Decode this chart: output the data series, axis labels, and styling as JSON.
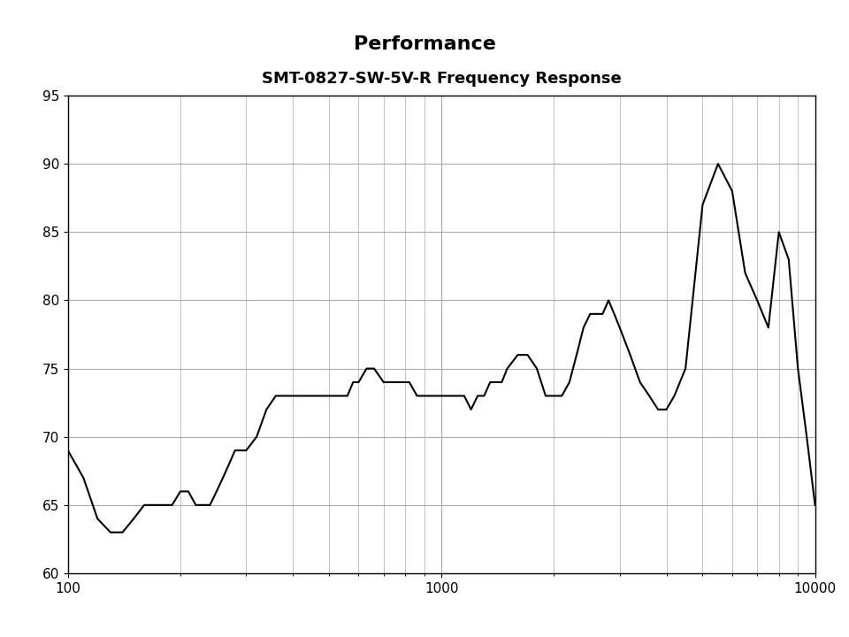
{
  "title": "Performance",
  "chart_title": "SMT-0827-SW-5V-R Frequency Response",
  "xlim": [
    100,
    10000
  ],
  "ylim": [
    60,
    95
  ],
  "yticks": [
    60,
    65,
    70,
    75,
    80,
    85,
    90,
    95
  ],
  "xticks": [
    100,
    1000,
    10000
  ],
  "background_color": "#ffffff",
  "line_color": "#000000",
  "grid_color": "#aaaaaa",
  "freq_data": [
    100,
    110,
    120,
    130,
    140,
    150,
    160,
    170,
    180,
    190,
    200,
    210,
    220,
    230,
    240,
    250,
    260,
    270,
    280,
    290,
    300,
    320,
    340,
    360,
    380,
    400,
    420,
    440,
    460,
    480,
    500,
    520,
    540,
    560,
    580,
    600,
    630,
    660,
    700,
    740,
    780,
    820,
    860,
    900,
    950,
    1000,
    1050,
    1100,
    1150,
    1200,
    1250,
    1300,
    1350,
    1400,
    1450,
    1500,
    1600,
    1700,
    1800,
    1900,
    2000,
    2100,
    2200,
    2300,
    2400,
    2500,
    2600,
    2700,
    2800,
    2900,
    3000,
    3200,
    3400,
    3600,
    3800,
    4000,
    4200,
    4500,
    5000,
    5500,
    6000,
    6500,
    7000,
    7500,
    8000,
    8500,
    9000,
    9500,
    10000
  ],
  "spl_data": [
    69,
    67,
    64,
    63,
    63,
    64,
    65,
    65,
    65,
    65,
    66,
    66,
    65,
    65,
    65,
    66,
    67,
    68,
    69,
    69,
    69,
    70,
    72,
    73,
    73,
    73,
    73,
    73,
    73,
    73,
    73,
    73,
    73,
    73,
    74,
    74,
    75,
    75,
    74,
    74,
    74,
    74,
    73,
    73,
    73,
    73,
    73,
    73,
    73,
    72,
    73,
    73,
    74,
    74,
    74,
    75,
    76,
    76,
    75,
    73,
    73,
    73,
    74,
    76,
    78,
    79,
    79,
    79,
    80,
    79,
    78,
    76,
    74,
    73,
    72,
    72,
    73,
    75,
    87,
    90,
    88,
    82,
    80,
    78,
    85,
    83,
    75,
    70,
    65
  ]
}
